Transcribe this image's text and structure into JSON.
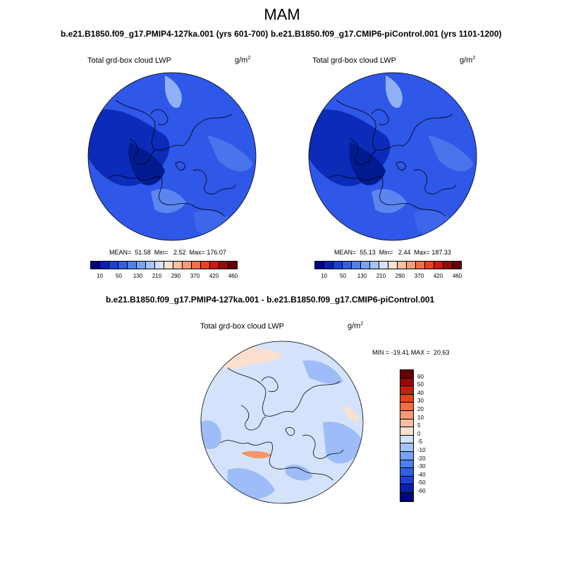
{
  "title": "MAM",
  "panels": [
    {
      "experiment": "b.e21.B1850.f09_g17.PMIP4-127ka.001 (yrs 601-700)",
      "variable": "Total grd-box cloud LWP",
      "unit_base": "g/m",
      "unit_exp": "2",
      "stats": "MEAN=  51.58  Min=   2.52  Max= 176.07"
    },
    {
      "experiment": "b.e21.B1850.f09_g17.CMIP6-piControl.001 (yrs 1101-1200)",
      "variable": "Total grd-box cloud LWP",
      "unit_base": "g/m",
      "unit_exp": "2",
      "stats": "MEAN=  55.13  Min=   2.44  Max= 187.33"
    }
  ],
  "diff_panel": {
    "title": "b.e21.B1850.f09_g17.PMIP4-127ka.001 - b.e21.B1850.f09_g17.CMIP6-piControl.001",
    "variable": "Total grd-box cloud LWP",
    "unit_base": "g/m",
    "unit_exp": "2",
    "stats": "MIN = -19.41 MAX =  20.63"
  },
  "colorbar": {
    "colors": [
      "#00008b",
      "#0a1fb8",
      "#1f3fd8",
      "#3060e8",
      "#4f80f0",
      "#79a2f5",
      "#a5c3f8",
      "#d2e2fb",
      "#fbe0cf",
      "#f8bfa3",
      "#f59a78",
      "#f06d48",
      "#e8421f",
      "#c81d0c",
      "#950a02",
      "#660000"
    ],
    "ticks": [
      "10",
      "50",
      "130",
      "210",
      "290",
      "370",
      "420",
      "460"
    ]
  },
  "diff_colorbar": {
    "colors": [
      "#00008b",
      "#0a1fb8",
      "#1f3fd8",
      "#3060e8",
      "#4f80f0",
      "#79a2f5",
      "#a5c3f8",
      "#d2e2fb",
      "#fbe0cf",
      "#f8bfa3",
      "#f59a78",
      "#f06d48",
      "#e8421f",
      "#c81d0c",
      "#950a02",
      "#660000"
    ],
    "ticks": [
      "60",
      "50",
      "40",
      "30",
      "20",
      "10",
      "5",
      "0",
      "-5",
      "-10",
      "-20",
      "-30",
      "-40",
      "-50",
      "-60"
    ]
  },
  "maps": {
    "base_color": "#2f57e8",
    "dark_color": "#0b2bb8",
    "light_color": "#8fb0f5",
    "diff_base": "#d4e3fb",
    "diff_neg": "#9ebcf7",
    "diff_pos": "#fbe0cf",
    "diff_strongpos": "#f4956a",
    "coast_color": "#000000"
  }
}
